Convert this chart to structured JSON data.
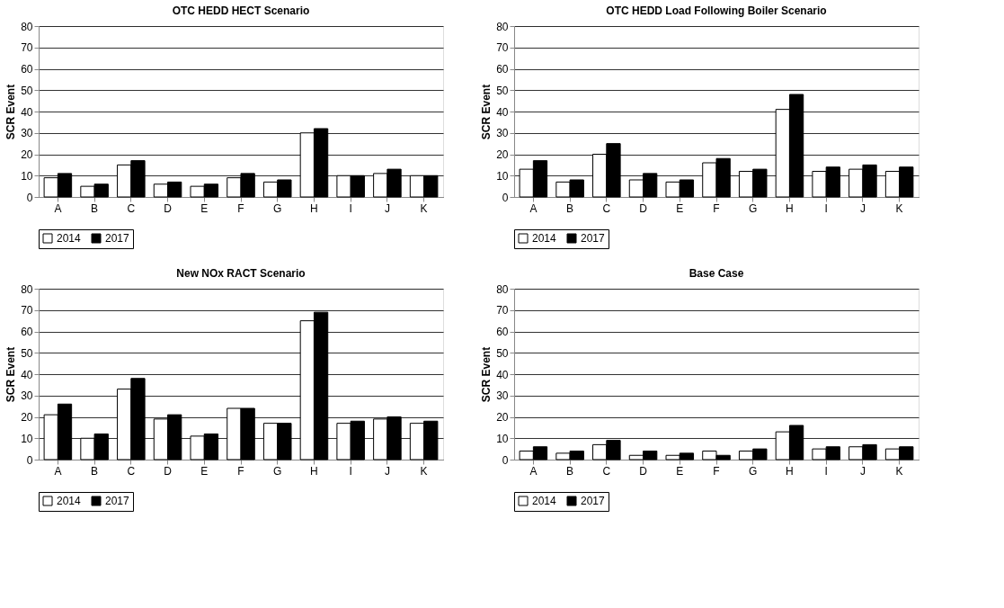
{
  "chart_data": [
    {
      "type": "bar",
      "title": "OTC HEDD HECT Scenario",
      "ylabel": "SCR Event",
      "categories": [
        "A",
        "B",
        "C",
        "D",
        "E",
        "F",
        "G",
        "H",
        "I",
        "J",
        "K"
      ],
      "ylim": [
        0,
        80
      ],
      "yticks": [
        0,
        10,
        20,
        30,
        40,
        50,
        60,
        70,
        80
      ],
      "grid": "y",
      "legend": "bottom",
      "series": [
        {
          "name": "2014",
          "color": "#ffffff",
          "values": [
            9,
            5,
            15,
            6,
            5,
            9,
            7,
            30,
            10,
            11,
            10
          ]
        },
        {
          "name": "2017",
          "color": "#000000",
          "values": [
            11,
            6,
            17,
            7,
            6,
            11,
            8,
            32,
            10,
            13,
            10
          ]
        }
      ]
    },
    {
      "type": "bar",
      "title": "OTC HEDD Load Following Boiler Scenario",
      "ylabel": "SCR Event",
      "categories": [
        "A",
        "B",
        "C",
        "D",
        "E",
        "F",
        "G",
        "H",
        "I",
        "J",
        "K"
      ],
      "ylim": [
        0,
        80
      ],
      "yticks": [
        0,
        10,
        20,
        30,
        40,
        50,
        60,
        70,
        80
      ],
      "grid": "y",
      "legend": "bottom",
      "series": [
        {
          "name": "2014",
          "color": "#ffffff",
          "values": [
            13,
            7,
            20,
            8,
            7,
            16,
            12,
            41,
            12,
            13,
            12
          ]
        },
        {
          "name": "2017",
          "color": "#000000",
          "values": [
            17,
            8,
            25,
            11,
            8,
            18,
            13,
            48,
            14,
            15,
            14
          ]
        }
      ]
    },
    {
      "type": "bar",
      "title": "New NOx RACT Scenario",
      "ylabel": "SCR Event",
      "categories": [
        "A",
        "B",
        "C",
        "D",
        "E",
        "F",
        "G",
        "H",
        "I",
        "J",
        "K"
      ],
      "ylim": [
        0,
        80
      ],
      "yticks": [
        0,
        10,
        20,
        30,
        40,
        50,
        60,
        70,
        80
      ],
      "grid": "y",
      "legend": "bottom",
      "series": [
        {
          "name": "2014",
          "color": "#ffffff",
          "values": [
            21,
            10,
            33,
            19,
            11,
            24,
            17,
            65,
            17,
            19,
            17
          ]
        },
        {
          "name": "2017",
          "color": "#000000",
          "values": [
            26,
            12,
            38,
            21,
            12,
            24,
            17,
            69,
            18,
            20,
            18
          ]
        }
      ]
    },
    {
      "type": "bar",
      "title": "Base Case",
      "ylabel": "SCR Event",
      "categories": [
        "A",
        "B",
        "C",
        "D",
        "E",
        "F",
        "G",
        "H",
        "I",
        "J",
        "K"
      ],
      "ylim": [
        0,
        80
      ],
      "yticks": [
        0,
        10,
        20,
        30,
        40,
        50,
        60,
        70,
        80
      ],
      "grid": "y",
      "legend": "bottom",
      "series": [
        {
          "name": "2014",
          "color": "#ffffff",
          "values": [
            4,
            3,
            7,
            2,
            2,
            4,
            4,
            13,
            5,
            6,
            5
          ]
        },
        {
          "name": "2017",
          "color": "#000000",
          "values": [
            6,
            4,
            9,
            4,
            3,
            2,
            5,
            16,
            6,
            7,
            6
          ]
        }
      ]
    }
  ]
}
